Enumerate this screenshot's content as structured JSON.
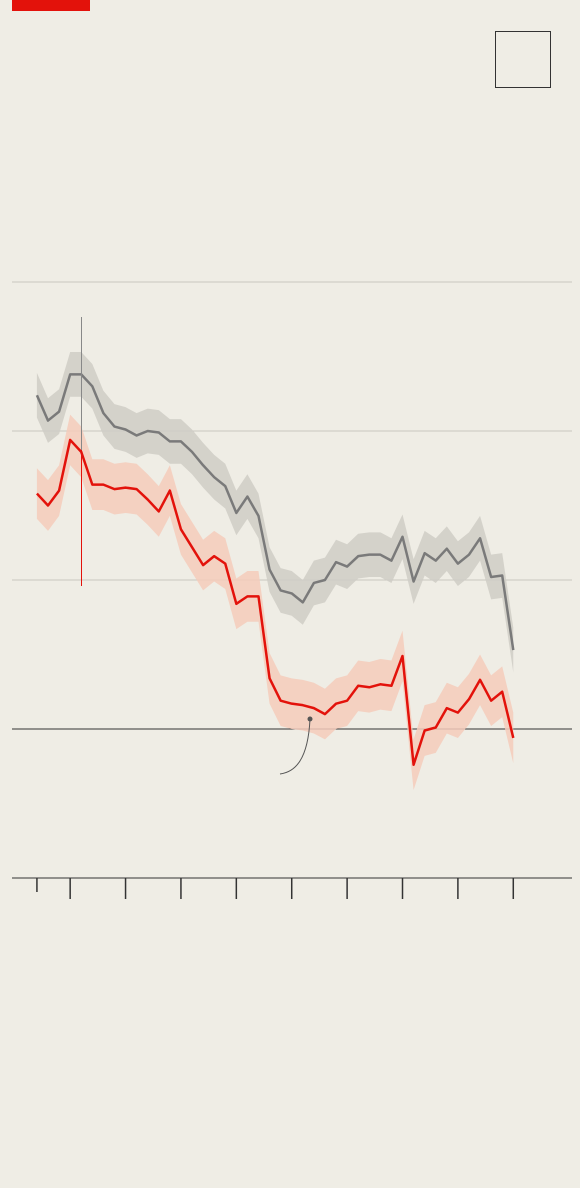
{
  "chart_data": {
    "type": "line",
    "x": [
      -0.6,
      -0.4,
      -0.2,
      0,
      0.2,
      0.4,
      0.6,
      0.8,
      1,
      1.2,
      1.4,
      1.6,
      1.8,
      2,
      2.2,
      2.4,
      2.6,
      2.8,
      3,
      3.2,
      3.4,
      3.6,
      3.8,
      4,
      4.2,
      4.4,
      4.6,
      4.8,
      5,
      5.2,
      5.4,
      5.6,
      5.8,
      6,
      6.2,
      6.4,
      6.6,
      6.8,
      7,
      7.2,
      7.4,
      7.6,
      7.8,
      8
    ],
    "series": [
      {
        "color": "#7a7a7a",
        "band_color": "#cfcdc6",
        "band": 0.15,
        "values": [
          2.24,
          2.07,
          2.13,
          2.38,
          2.38,
          2.3,
          2.12,
          2.03,
          2.01,
          1.97,
          2.0,
          1.99,
          1.93,
          1.93,
          1.86,
          1.77,
          1.69,
          1.63,
          1.45,
          1.56,
          1.43,
          1.07,
          0.93,
          0.91,
          0.85,
          0.98,
          1.0,
          1.12,
          1.09,
          1.16,
          1.17,
          1.17,
          1.13,
          1.29,
          0.99,
          1.18,
          1.13,
          1.21,
          1.11,
          1.17,
          1.28,
          1.02,
          1.03,
          0.53
        ]
      },
      {
        "color": "#e3120b",
        "band_color": "#f4cbbb",
        "band": 0.17,
        "values": [
          1.58,
          1.5,
          1.6,
          1.94,
          1.86,
          1.64,
          1.64,
          1.61,
          1.62,
          1.61,
          1.54,
          1.46,
          1.6,
          1.34,
          1.22,
          1.1,
          1.16,
          1.11,
          0.84,
          0.89,
          0.89,
          0.34,
          0.19,
          0.17,
          0.16,
          0.14,
          0.1,
          0.17,
          0.19,
          0.29,
          0.28,
          0.3,
          0.29,
          0.49,
          -0.24,
          -0.01,
          0.01,
          0.14,
          0.11,
          0.2,
          0.33,
          0.19,
          0.25,
          -0.06
        ]
      }
    ],
    "xlim": [
      -1.05,
      9.06
    ],
    "xticks": [
      -0.6,
      0,
      1,
      2,
      3,
      4,
      5,
      6,
      7,
      8
    ],
    "ylim": [
      -1,
      3
    ],
    "yticks": [
      -1,
      0,
      1,
      2,
      3
    ],
    "grid": true
  }
}
